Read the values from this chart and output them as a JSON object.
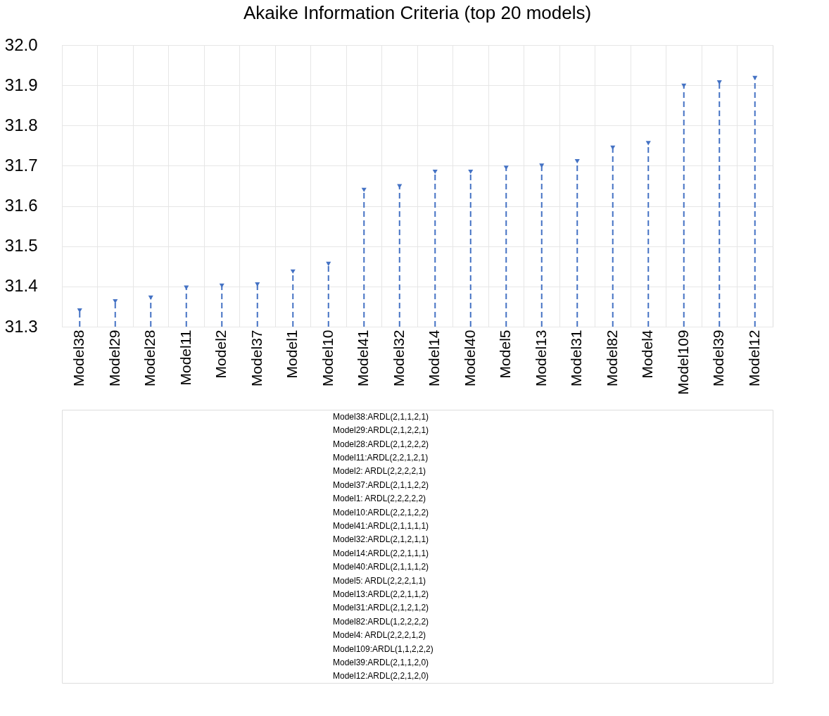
{
  "chart_data": {
    "type": "lollipop",
    "title": "Akaike Information Criteria (top 20 models)",
    "categories": [
      "Model38",
      "Model29",
      "Model28",
      "Model11",
      "Model2",
      "Model37",
      "Model1",
      "Model10",
      "Model41",
      "Model32",
      "Model14",
      "Model40",
      "Model5",
      "Model13",
      "Model31",
      "Model82",
      "Model4",
      "Model109",
      "Model39",
      "Model12"
    ],
    "series": [
      {
        "color": "#4472c4",
        "values": [
          31.34,
          31.363,
          31.372,
          31.397,
          31.402,
          31.405,
          31.437,
          31.456,
          31.64,
          31.649,
          31.685,
          31.685,
          31.695,
          31.7,
          31.711,
          31.745,
          31.756,
          31.899,
          31.907,
          31.918
        ]
      }
    ],
    "ylim": [
      31.3,
      32.0
    ],
    "yticks": [
      {
        "value": 31.3,
        "label": "31.3"
      },
      {
        "value": 31.4,
        "label": "31.4"
      },
      {
        "value": 31.5,
        "label": "31.5"
      },
      {
        "value": 31.6,
        "label": "31.6"
      },
      {
        "value": 31.7,
        "label": "31.7"
      },
      {
        "value": 31.8,
        "label": "31.8"
      },
      {
        "value": 31.9,
        "label": "31.9"
      },
      {
        "value": 32.0,
        "label": "32.0"
      }
    ],
    "grid": true,
    "marker": "triangle",
    "line_style": "dashed",
    "annotations": [
      "Model38:ARDL(2,1,1,2,1)",
      "Model29:ARDL(2,1,2,2,1)",
      "Model28:ARDL(2,1,2,2,2)",
      "Model11:ARDL(2,2,1,2,1)",
      "Model2: ARDL(2,2,2,2,1)",
      "Model37:ARDL(2,1,1,2,2)",
      "Model1: ARDL(2,2,2,2,2)",
      "Model10:ARDL(2,2,1,2,2)",
      "Model41:ARDL(2,1,1,1,1)",
      "Model32:ARDL(2,1,2,1,1)",
      "Model14:ARDL(2,2,1,1,1)",
      "Model40:ARDL(2,1,1,1,2)",
      "Model5: ARDL(2,2,2,1,1)",
      "Model13:ARDL(2,2,1,1,2)",
      "Model31:ARDL(2,1,2,1,2)",
      "Model82:ARDL(1,2,2,2,2)",
      "Model4: ARDL(2,2,2,1,2)",
      "Model109:ARDL(1,1,2,2,2)",
      "Model39:ARDL(2,1,1,2,0)",
      "Model12:ARDL(2,2,1,2,0)"
    ]
  }
}
